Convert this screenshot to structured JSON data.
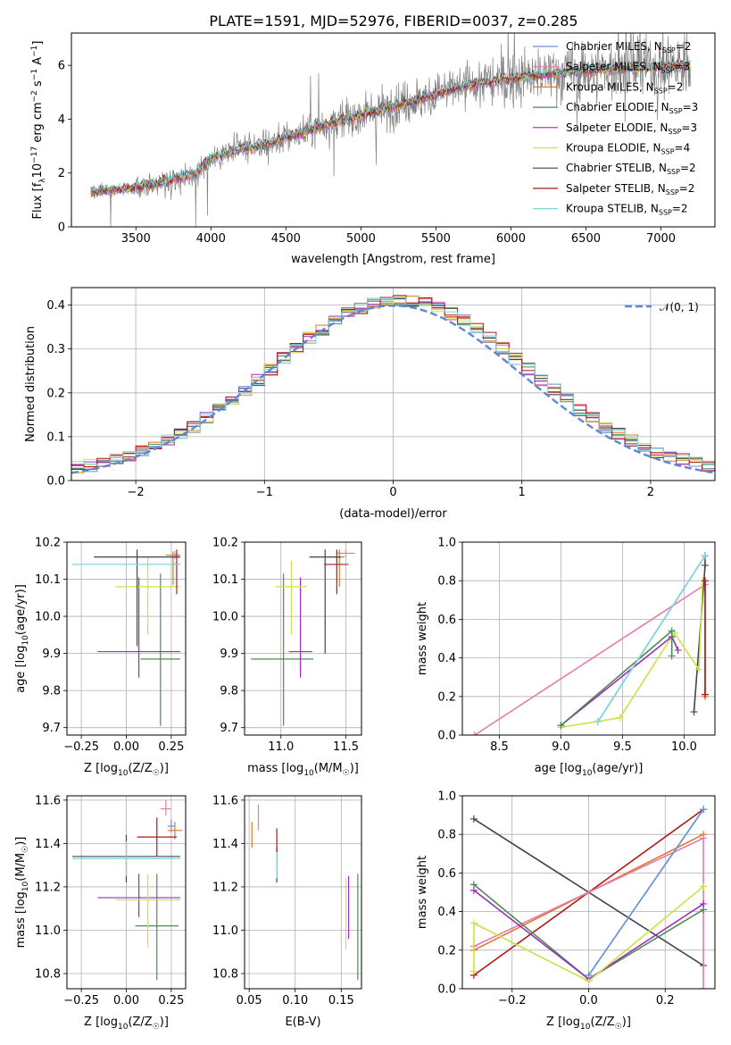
{
  "figure": {
    "title": "PLATE=1591, MJD=52976, FIBERID=0037, z=0.285"
  },
  "series": [
    {
      "name": "Chabrier MILES, N$_{SSP}$=2",
      "label_main": "Chabrier MILES, N",
      "label_sub": "SSP",
      "label_end": "=2",
      "color": "#6b8fd6"
    },
    {
      "name": "Salpeter MILES, N$_{SSP}$=3",
      "label_main": "Salpeter MILES, N",
      "label_sub": "SSP",
      "label_end": "=3",
      "color": "#e87aae"
    },
    {
      "name": "Kroupa MILES, N$_{SSP}$=2",
      "label_main": "Kroupa MILES, N",
      "label_sub": "SSP",
      "label_end": "=2",
      "color": "#e0762a"
    },
    {
      "name": "Chabrier ELODIE, N$_{SSP}$=3",
      "label_main": "Chabrier ELODIE, N",
      "label_sub": "SSP",
      "label_end": "=3",
      "color": "#4f8a55"
    },
    {
      "name": "Salpeter ELODIE, N$_{SSP}$=3",
      "label_main": "Salpeter ELODIE, N",
      "label_sub": "SSP",
      "label_end": "=3",
      "color": "#9a2eb8"
    },
    {
      "name": "Kroupa ELODIE, N$_{SSP}$=4",
      "label_main": "Kroupa ELODIE, N",
      "label_sub": "SSP",
      "label_end": "=4",
      "color": "#cfe04a"
    },
    {
      "name": "Chabrier STELIB, N$_{SSP}$=2",
      "label_main": "Chabrier STELIB, N",
      "label_sub": "SSP",
      "label_end": "=2",
      "color": "#444444"
    },
    {
      "name": "Salpeter STELIB, N$_{SSP}$=2",
      "label_main": "Salpeter STELIB, N",
      "label_sub": "SSP",
      "label_end": "=2",
      "color": "#b01818"
    },
    {
      "name": "Kroupa STELIB, N$_{SSP}$=2",
      "label_main": "Kroupa STELIB, N",
      "label_sub": "SSP",
      "label_end": "=2",
      "color": "#7fd8e0"
    }
  ],
  "chart_data": [
    {
      "id": "spectrum",
      "type": "line",
      "xlabel": "wavelength [Angstrom, rest frame]",
      "ylabel": "Flux [f_λ 10^-17 erg cm^-2 s^-1 A^-1]",
      "ylabel_parts": {
        "a": "Flux [f",
        "b": "λ",
        "c": "10",
        "d": "−17",
        "e": " erg cm",
        "f": "−2",
        "g": " s",
        "h": "−1",
        "i": " A",
        "j": "−1",
        "k": "]"
      },
      "xlim": [
        3070,
        7360
      ],
      "ylim": [
        0,
        7.2
      ],
      "xticks": [
        3500,
        4000,
        4500,
        5000,
        5500,
        6000,
        6500,
        7000
      ],
      "yticks": [
        0,
        2,
        4,
        6
      ],
      "grid": false,
      "legend": "upper-right",
      "continuum": {
        "x": [
          3200,
          3300,
          3500,
          3700,
          3900,
          4000,
          4200,
          4400,
          4600,
          4800,
          5000,
          5200,
          5400,
          5600,
          5800,
          6000,
          6300,
          6600,
          6900,
          7200
        ],
        "y": [
          1.3,
          1.35,
          1.45,
          1.7,
          2.0,
          2.55,
          2.9,
          3.1,
          3.5,
          3.85,
          4.15,
          4.45,
          4.75,
          5.1,
          5.35,
          5.5,
          5.7,
          5.85,
          5.95,
          6.0
        ]
      },
      "data_range": [
        3200,
        7200
      ]
    },
    {
      "id": "residual-histogram",
      "type": "histogram",
      "xlabel": "(data-model)/error",
      "ylabel": "Normed distribution",
      "xlim": [
        -2.5,
        2.5
      ],
      "ylim": [
        0,
        0.44
      ],
      "xticks": [
        -2,
        -1,
        0,
        1,
        2
      ],
      "xticklabels": [
        "−2",
        "−1",
        "0",
        "1",
        "2"
      ],
      "yticks": [
        0.0,
        0.1,
        0.2,
        0.3,
        0.4
      ],
      "yticklabels": [
        "0.0",
        "0.1",
        "0.2",
        "0.3",
        "0.4"
      ],
      "grid": true,
      "legend": "upper-right",
      "gaussian_label": "𝒩(0, 1)",
      "bin_width": 0.1
    },
    {
      "id": "age-vs-Z",
      "type": "errorbar",
      "xlabel": "Z [log10(Z/Z☉)]",
      "xlabel_parts": {
        "a": "Z [log",
        "b": "10",
        "c": "(Z/Z",
        "d": "☉",
        "e": ")]"
      },
      "ylabel": "age [log10(age/yr)]",
      "ylabel_parts": {
        "a": "age  [log",
        "b": "10",
        "c": "(age/yr)]"
      },
      "xlim": [
        -0.33,
        0.33
      ],
      "ylim": [
        9.68,
        10.2
      ],
      "xticks": [
        -0.25,
        0.0,
        0.25
      ],
      "xticklabels": [
        "−0.25",
        "0.00",
        "0.25"
      ],
      "yticks": [
        9.7,
        9.8,
        9.9,
        10.0,
        10.1,
        10.2
      ],
      "grid": true,
      "points": [
        {
          "s": 0,
          "x": 0.0,
          "xerr": [
            0.3,
            0.3
          ],
          "y": 10.14,
          "yerr": [
            0,
            0
          ]
        },
        {
          "s": 1,
          "x": 0.27,
          "xerr": [
            0.03,
            0.03
          ],
          "y": 10.165,
          "yerr": [
            0.01,
            0.01
          ]
        },
        {
          "s": 2,
          "x": 0.26,
          "xerr": [
            0.04,
            0.04
          ],
          "y": 10.165,
          "yerr": [
            0.08,
            0.01
          ]
        },
        {
          "s": 3,
          "x": 0.19,
          "xerr": [
            0.11,
            0.11
          ],
          "y": 9.885,
          "yerr": [
            0.18,
            0.23
          ]
        },
        {
          "s": 4,
          "x": 0.07,
          "xerr": [
            0.23,
            0.23
          ],
          "y": 9.905,
          "yerr": [
            0.07,
            0.2
          ]
        },
        {
          "s": 5,
          "x": 0.12,
          "xerr": [
            0.18,
            0.18
          ],
          "y": 10.08,
          "yerr": [
            0.13,
            0.08
          ]
        },
        {
          "s": 6,
          "x": 0.06,
          "xerr": [
            0.24,
            0.24
          ],
          "y": 10.16,
          "yerr": [
            0.24,
            0.02
          ]
        },
        {
          "s": 7,
          "x": 0.28,
          "xerr": [
            0.02,
            0.02
          ],
          "y": 10.14,
          "yerr": [
            0.08,
            0.04
          ]
        },
        {
          "s": 8,
          "x": 0.0,
          "xerr": [
            0.3,
            0.3
          ],
          "y": 10.14,
          "yerr": [
            0,
            0
          ]
        }
      ]
    },
    {
      "id": "age-vs-mass",
      "type": "errorbar",
      "xlabel": "mass [log10(M/M☉)]",
      "xlabel_parts": {
        "a": "mass [log",
        "b": "10",
        "c": "(M/M",
        "d": "☉",
        "e": ")]"
      },
      "xlim": [
        10.72,
        11.62
      ],
      "ylim": [
        9.68,
        10.2
      ],
      "xticks": [
        11.0,
        11.5
      ],
      "xticklabels": [
        "11.0",
        "11.5"
      ],
      "yticks": [
        9.7,
        9.8,
        9.9,
        10.0,
        10.1,
        10.2
      ],
      "grid": true,
      "points": [
        {
          "s": 0,
          "x": 11.34,
          "xerr": [
            0.01,
            0.01
          ],
          "y": 10.14,
          "yerr": [
            0,
            0
          ]
        },
        {
          "s": 1,
          "x": 11.5,
          "xerr": [
            0.07,
            0.07
          ],
          "y": 10.17,
          "yerr": [
            0.01,
            0.01
          ]
        },
        {
          "s": 2,
          "x": 11.45,
          "xerr": [
            0.04,
            0.04
          ],
          "y": 10.16,
          "yerr": [
            0.08,
            0.02
          ]
        },
        {
          "s": 3,
          "x": 11.02,
          "xerr": [
            0.25,
            0.23
          ],
          "y": 9.885,
          "yerr": [
            0.18,
            0.23
          ]
        },
        {
          "s": 4,
          "x": 11.15,
          "xerr": [
            0.09,
            0.09
          ],
          "y": 9.905,
          "yerr": [
            0.07,
            0.2
          ]
        },
        {
          "s": 5,
          "x": 11.08,
          "xerr": [
            0.12,
            0.12
          ],
          "y": 10.08,
          "yerr": [
            0.13,
            0.07
          ]
        },
        {
          "s": 6,
          "x": 11.34,
          "xerr": [
            0.12,
            0.12
          ],
          "y": 10.16,
          "yerr": [
            0.26,
            0.02
          ]
        },
        {
          "s": 7,
          "x": 11.43,
          "xerr": [
            0.09,
            0.09
          ],
          "y": 10.14,
          "yerr": [
            0.08,
            0.04
          ]
        },
        {
          "s": 8,
          "x": 11.35,
          "xerr": [
            0.0,
            0.0
          ],
          "y": 10.14,
          "yerr": [
            0,
            0
          ]
        }
      ]
    },
    {
      "id": "massweight-vs-age",
      "type": "line",
      "xlabel": "age  [log10(age/yr)]",
      "xlabel_parts": {
        "a": "age  [log",
        "b": "10",
        "c": "(age/yr)]"
      },
      "ylabel": "mass weight",
      "xlim": [
        8.2,
        10.25
      ],
      "ylim": [
        0,
        1.0
      ],
      "xticks": [
        8.5,
        9.0,
        9.5,
        10.0
      ],
      "xticklabels": [
        "8.5",
        "9.0",
        "9.5",
        "10.0"
      ],
      "yticks": [
        0.0,
        0.2,
        0.4,
        0.6,
        0.8,
        1.0
      ],
      "grid": true,
      "lines": [
        {
          "s": 1,
          "x": [
            8.3,
            10.17
          ],
          "y": [
            0.0,
            0.78
          ]
        },
        {
          "s": 0,
          "x": [
            9.3,
            10.17
          ],
          "y": [
            0.07,
            0.93
          ]
        },
        {
          "s": 6,
          "x": [
            10.08,
            10.17,
            10.17
          ],
          "y": [
            0.12,
            0.88,
            0.93
          ]
        },
        {
          "s": 5,
          "x": [
            9.0,
            9.48,
            9.92,
            10.12,
            10.15
          ],
          "y": [
            0.04,
            0.09,
            0.53,
            0.34,
            0.8
          ]
        },
        {
          "s": 4,
          "x": [
            9.0,
            9.9,
            9.95
          ],
          "y": [
            0.05,
            0.51,
            0.44
          ]
        },
        {
          "s": 3,
          "x": [
            9.0,
            9.9,
            9.9
          ],
          "y": [
            0.05,
            0.54,
            0.41
          ]
        },
        {
          "s": 8,
          "x": [
            9.3,
            10.17
          ],
          "y": [
            0.07,
            0.93
          ]
        },
        {
          "s": 2,
          "x": [
            10.17,
            10.17
          ],
          "y": [
            0.2,
            0.8
          ]
        },
        {
          "s": 7,
          "x": [
            10.17,
            10.17
          ],
          "y": [
            0.21,
            0.8
          ]
        }
      ]
    },
    {
      "id": "mass-vs-Z",
      "type": "errorbar",
      "xlabel": "Z [log10(Z/Z☉)]",
      "xlabel_parts": {
        "a": "Z [log",
        "b": "10",
        "c": "(Z/Z",
        "d": "☉",
        "e": ")]"
      },
      "ylabel": "mass [log10(M/M☉)]",
      "ylabel_parts": {
        "a": "mass [log",
        "b": "10",
        "c": "(M/M",
        "d": "☉",
        "e": ")]"
      },
      "xlim": [
        -0.33,
        0.33
      ],
      "ylim": [
        10.73,
        11.62
      ],
      "xticks": [
        -0.25,
        0.0,
        0.25
      ],
      "xticklabels": [
        "−0.25",
        "0.00",
        "0.25"
      ],
      "yticks": [
        10.8,
        11.0,
        11.2,
        11.4,
        11.6
      ],
      "grid": true,
      "points": [
        {
          "s": 0,
          "x": 0.25,
          "xerr": [
            0.02,
            0.02
          ],
          "y": 11.48,
          "yerr": [
            0.03,
            0.03
          ]
        },
        {
          "s": 1,
          "x": 0.22,
          "xerr": [
            0.03,
            0.03
          ],
          "y": 11.56,
          "yerr": [
            0.03,
            0.04
          ]
        },
        {
          "s": 2,
          "x": 0.27,
          "xerr": [
            0.04,
            0.04
          ],
          "y": 11.46,
          "yerr": [
            0.04,
            0.04
          ]
        },
        {
          "s": 3,
          "x": 0.17,
          "xerr": [
            0.12,
            0.12
          ],
          "y": 11.02,
          "yerr": [
            0.25,
            0.24
          ]
        },
        {
          "s": 4,
          "x": 0.07,
          "xerr": [
            0.23,
            0.23
          ],
          "y": 11.15,
          "yerr": [
            0.09,
            0.11
          ]
        },
        {
          "s": 5,
          "x": 0.12,
          "xerr": [
            0.18,
            0.18
          ],
          "y": 11.14,
          "yerr": [
            0.22,
            0.12
          ]
        },
        {
          "s": 6,
          "x": 0.0,
          "xerr": [
            0.3,
            0.3
          ],
          "y": 11.34,
          "yerr": [
            0.12,
            0.1
          ]
        },
        {
          "s": 7,
          "x": 0.17,
          "xerr": [
            0.11,
            0.11
          ],
          "y": 11.43,
          "yerr": [
            0.09,
            0.09
          ]
        },
        {
          "s": 8,
          "x": -0.0,
          "xerr": [
            0.3,
            0.3
          ],
          "y": 11.33,
          "yerr": [
            0.08,
            0.08
          ]
        }
      ]
    },
    {
      "id": "mass-vs-EBV",
      "type": "errorbar",
      "xlabel": "E(B-V)",
      "xlim": [
        0.045,
        0.172
      ],
      "ylim": [
        10.73,
        11.62
      ],
      "xticks": [
        0.05,
        0.1,
        0.15
      ],
      "xticklabels": [
        "0.05",
        "0.10",
        "0.15"
      ],
      "yticks": [
        10.8,
        11.0,
        11.2,
        11.4,
        11.6
      ],
      "grid": true,
      "points": [
        {
          "s": 0,
          "x": 0.08,
          "xerr": [
            0,
            0
          ],
          "y": 11.35,
          "yerr": [
            0.03,
            0.03
          ]
        },
        {
          "s": 1,
          "x": 0.06,
          "xerr": [
            0,
            0
          ],
          "y": 11.52,
          "yerr": [
            0.06,
            0.06
          ]
        },
        {
          "s": 2,
          "x": 0.053,
          "xerr": [
            0,
            0
          ],
          "y": 11.44,
          "yerr": [
            0.06,
            0.06
          ]
        },
        {
          "s": 3,
          "x": 0.168,
          "xerr": [
            0,
            0
          ],
          "y": 11.02,
          "yerr": [
            0.25,
            0.24
          ]
        },
        {
          "s": 4,
          "x": 0.158,
          "xerr": [
            0,
            0
          ],
          "y": 11.1,
          "yerr": [
            0.14,
            0.15
          ]
        },
        {
          "s": 5,
          "x": 0.155,
          "xerr": [
            0,
            0
          ],
          "y": 11.09,
          "yerr": [
            0.18,
            0.15
          ]
        },
        {
          "s": 6,
          "x": 0.08,
          "xerr": [
            0,
            0
          ],
          "y": 11.3,
          "yerr": [
            0.08,
            0.08
          ]
        },
        {
          "s": 7,
          "x": 0.08,
          "xerr": [
            0,
            0
          ],
          "y": 11.42,
          "yerr": [
            0.06,
            0.05
          ]
        },
        {
          "s": 8,
          "x": 0.08,
          "xerr": [
            0,
            0
          ],
          "y": 11.3,
          "yerr": [
            0.06,
            0.06
          ]
        }
      ]
    },
    {
      "id": "massweight-vs-Z",
      "type": "line",
      "xlabel": "Z [log10(Z/Z☉)]",
      "xlabel_parts": {
        "a": "Z [log",
        "b": "10",
        "c": "(Z/Z",
        "d": "☉",
        "e": ")]"
      },
      "ylabel": "mass weight",
      "xlim": [
        -0.33,
        0.33
      ],
      "ylim": [
        0,
        1.0
      ],
      "xticks": [
        -0.2,
        0.0,
        0.2
      ],
      "xticklabels": [
        "−0.2",
        "0.0",
        "0.2"
      ],
      "yticks": [
        0.0,
        0.2,
        0.4,
        0.6,
        0.8,
        1.0
      ],
      "grid": true,
      "lines": [
        {
          "s": 6,
          "x": [
            -0.3,
            0.3
          ],
          "y": [
            0.88,
            0.12
          ]
        },
        {
          "s": 7,
          "x": [
            -0.3,
            0.3
          ],
          "y": [
            0.07,
            0.93
          ]
        },
        {
          "s": 2,
          "x": [
            -0.3,
            0.3
          ],
          "y": [
            0.2,
            0.8
          ]
        },
        {
          "s": 1,
          "x": [
            -0.3,
            0.3,
            0.3
          ],
          "y": [
            0.22,
            0.78,
            0.0
          ]
        },
        {
          "s": 3,
          "x": [
            -0.3,
            0.0,
            0.3
          ],
          "y": [
            0.54,
            0.05,
            0.41
          ]
        },
        {
          "s": 4,
          "x": [
            -0.3,
            0.0,
            0.3
          ],
          "y": [
            0.51,
            0.05,
            0.44
          ]
        },
        {
          "s": 5,
          "x": [
            -0.3,
            -0.3,
            0.0,
            0.3
          ],
          "y": [
            0.09,
            0.34,
            0.04,
            0.53
          ]
        },
        {
          "s": 8,
          "x": [
            0.0,
            0.3
          ],
          "y": [
            0.07,
            0.93
          ]
        },
        {
          "s": 0,
          "x": [
            0.0,
            0.3
          ],
          "y": [
            0.07,
            0.93
          ]
        }
      ]
    }
  ]
}
